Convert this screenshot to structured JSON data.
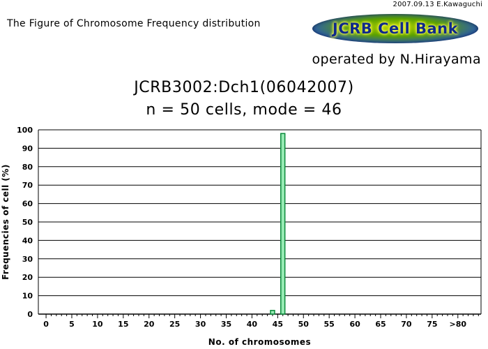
{
  "header": {
    "credit": "2007.09.13 E.Kawaguchi",
    "figure_caption": "The Figure of Chromosome Frequency distribution",
    "logo_text": "JCRB Cell Bank",
    "operator": "operated by N.Hirayama"
  },
  "colors": {
    "bar_fill": "#99ebb5",
    "bar_stroke": "#0a8a3a",
    "grid": "#000000"
  },
  "chart_data": {
    "type": "bar",
    "title": "JCRB3002:Dch1(06042007)",
    "subtitle": "n = 50 cells, mode = 46",
    "xlabel": "No. of chromosomes",
    "ylabel": "Frequencies of cell (%)",
    "ylim": [
      0,
      100
    ],
    "y_ticks": [
      0,
      10,
      20,
      30,
      40,
      50,
      60,
      70,
      80,
      90,
      100
    ],
    "x_tick_labels": [
      "0",
      "5",
      "10",
      "15",
      "20",
      "25",
      "30",
      "35",
      "40",
      "45",
      "50",
      "55",
      "60",
      "65",
      "70",
      "75",
      ">80"
    ],
    "x": [
      44,
      46
    ],
    "values": [
      2,
      98
    ],
    "grid": true,
    "legend": "none"
  }
}
